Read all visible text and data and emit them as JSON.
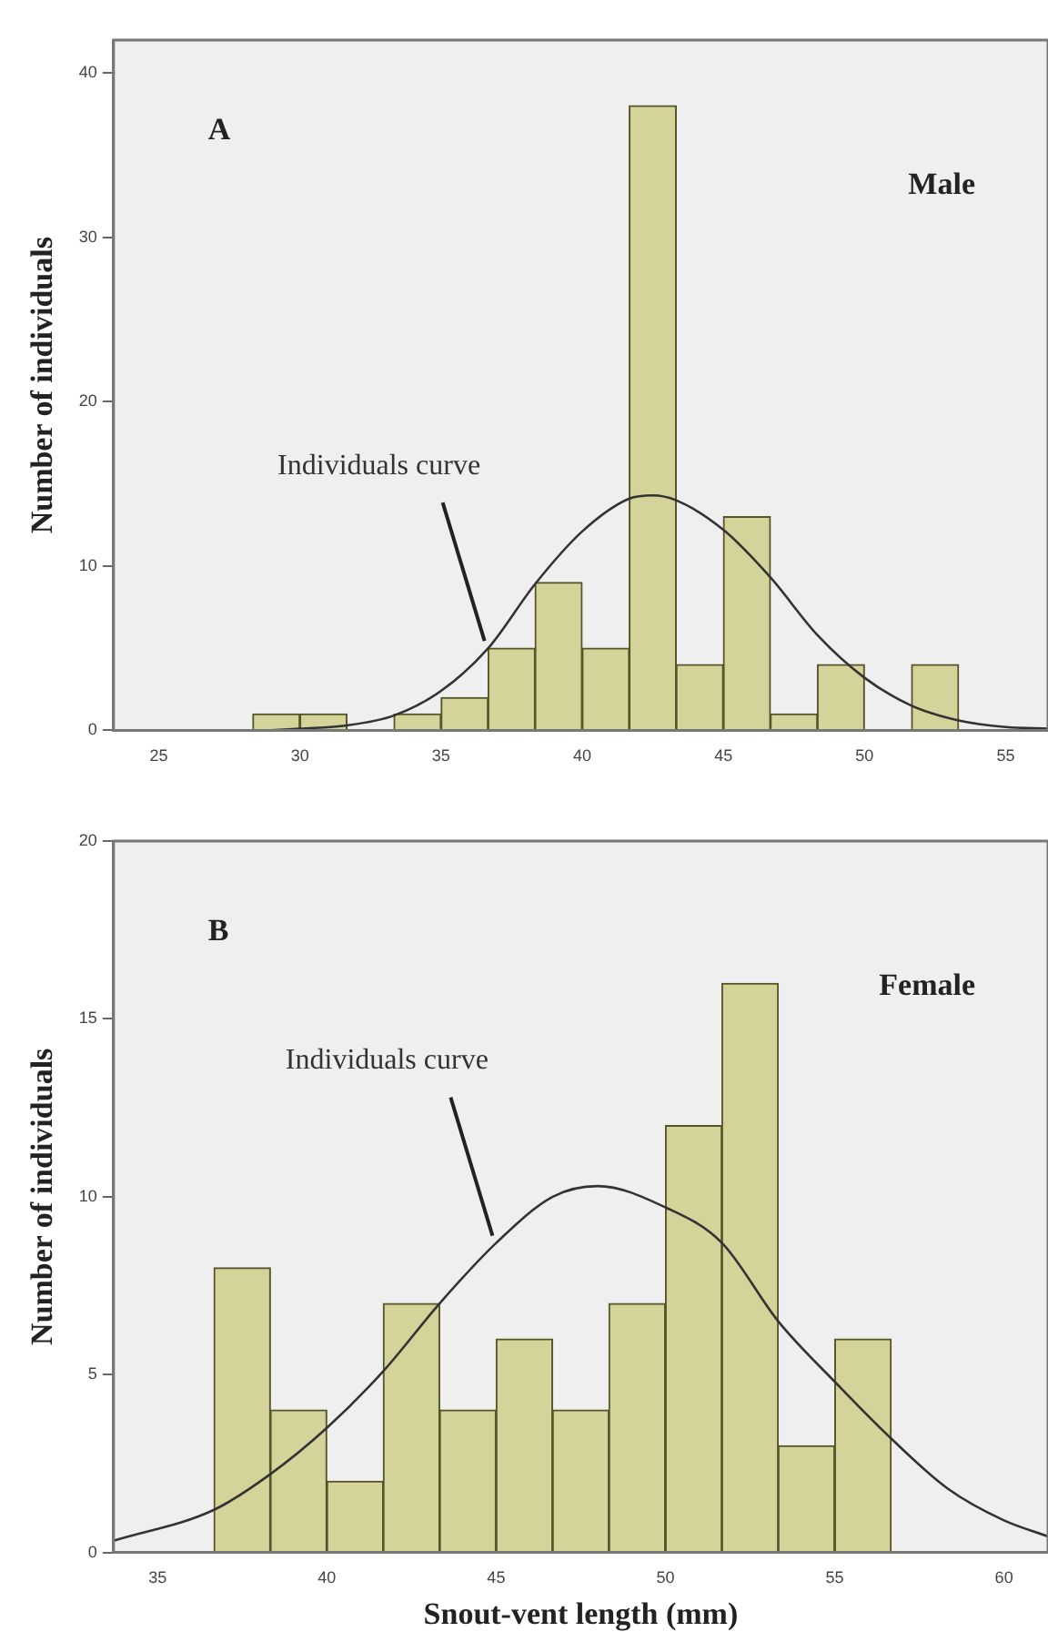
{
  "chart_data": [
    {
      "type": "histogram",
      "ylabel": "Number of individuals",
      "bins": [
        28.33,
        30,
        31.67,
        33.33,
        35,
        36.67,
        38.33,
        40,
        41.67,
        43.33,
        45,
        46.67,
        48.33,
        50,
        51.67,
        53.33
      ],
      "values": [
        1,
        1,
        0,
        1,
        2,
        5,
        9,
        5,
        38,
        4,
        13,
        1,
        4,
        0,
        4
      ],
      "color": "#d4d39a",
      "series": [
        {
          "type": "line",
          "color": "#333333",
          "x": [
            29,
            30,
            31.67,
            33.33,
            35,
            36.67,
            38.33,
            40,
            41.67,
            42.5,
            43.33,
            45,
            46.67,
            48.33,
            50,
            51.67,
            53.33,
            55,
            56.5
          ],
          "values": [
            0,
            0.1,
            0.3,
            0.9,
            2.4,
            5.0,
            8.9,
            12.1,
            14.1,
            14.3,
            14.0,
            12.2,
            9.3,
            5.8,
            3.2,
            1.5,
            0.6,
            0.2,
            0.1
          ]
        }
      ],
      "xlim": [
        23.4,
        56.5
      ],
      "xticks": [
        25,
        30,
        35,
        40,
        45,
        50,
        55
      ],
      "ylim": [
        0,
        42
      ],
      "yticks": [
        0,
        10,
        20,
        30,
        40
      ],
      "grid": false,
      "legend": false,
      "annotations": [
        "A",
        "Male",
        {
          "text": "Individuals curve",
          "x": 36.67,
          "y": 5.0
        }
      ]
    },
    {
      "type": "histogram",
      "xlabel": "Snout-vent length (mm)",
      "ylabel": "Number of individuals",
      "bins": [
        36.67,
        38.33,
        40,
        41.67,
        43.33,
        45,
        46.67,
        48.33,
        50,
        51.67,
        53.33,
        55,
        56.67
      ],
      "values": [
        8,
        4,
        2,
        7,
        4,
        6,
        4,
        7,
        12,
        16,
        3,
        6
      ],
      "color": "#d4d39a",
      "series": [
        {
          "type": "line",
          "color": "#333333",
          "x": [
            33.7,
            36.67,
            38.33,
            40,
            41.67,
            43.33,
            45,
            46.67,
            48,
            50,
            51.67,
            53.33,
            55,
            56.67,
            58.33,
            60,
            61.3
          ],
          "values": [
            0.33,
            1.2,
            2.2,
            3.5,
            5.1,
            7.0,
            8.7,
            10.0,
            10.3,
            9.7,
            8.7,
            6.5,
            4.8,
            3.2,
            1.8,
            0.9,
            0.45
          ]
        }
      ],
      "xlim": [
        33.7,
        61.3
      ],
      "xticks": [
        35,
        40,
        45,
        50,
        55,
        60
      ],
      "ylim": [
        0,
        20
      ],
      "yticks": [
        0,
        5,
        10,
        15,
        20
      ],
      "grid": false,
      "legend": false,
      "annotations": [
        "B",
        "Female",
        {
          "text": "Individuals curve",
          "x": 45,
          "y": 8.7
        }
      ]
    }
  ]
}
